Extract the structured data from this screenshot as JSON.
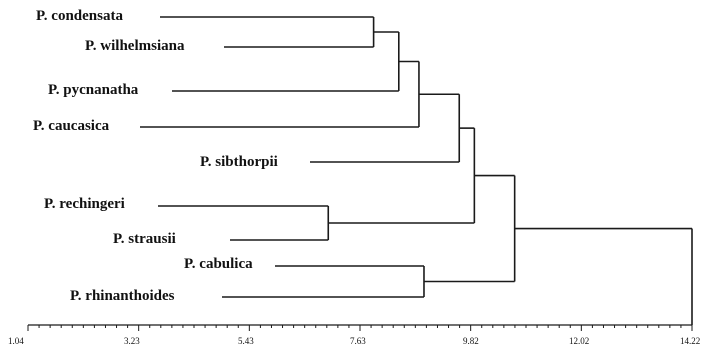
{
  "diagram": {
    "type": "dendrogram",
    "line_color": "#1a1a1a",
    "taxa": [
      "P. condensata",
      "P. wilhelmsiana",
      "P. pycnanatha",
      "P. caucasica",
      "P. sibthorpii",
      "P. rechingeri",
      "P. strausii",
      "P. cabulica",
      "P. rhinanthoides"
    ],
    "axis": {
      "tick_labels": [
        "1.04",
        "3.23",
        "5.43",
        "7.63",
        "9.82",
        "12.02",
        "14.22"
      ],
      "min": 1.04,
      "max": 14.22
    },
    "merges": [
      {
        "id": "m1",
        "children": [
          "P. condensata",
          "P. wilhelmsiana"
        ],
        "height": 7.9
      },
      {
        "id": "m2",
        "children": [
          "m1",
          "P. pycnanatha"
        ],
        "height": 8.4
      },
      {
        "id": "m3",
        "children": [
          "m2",
          "P. caucasica"
        ],
        "height": 8.8
      },
      {
        "id": "m4",
        "children": [
          "m3",
          "P. sibthorpii"
        ],
        "height": 9.6
      },
      {
        "id": "m5",
        "children": [
          "P. rechingeri",
          "P. strausii"
        ],
        "height": 7.0
      },
      {
        "id": "m6",
        "children": [
          "m4",
          "m5"
        ],
        "height": 9.9
      },
      {
        "id": "m7",
        "children": [
          "P. cabulica",
          "P. rhinanthoides"
        ],
        "height": 8.9
      },
      {
        "id": "m8",
        "children": [
          "m6",
          "m7"
        ],
        "height": 10.7
      },
      {
        "id": "m9",
        "children": [
          "m8"
        ],
        "height": 14.22
      }
    ]
  }
}
